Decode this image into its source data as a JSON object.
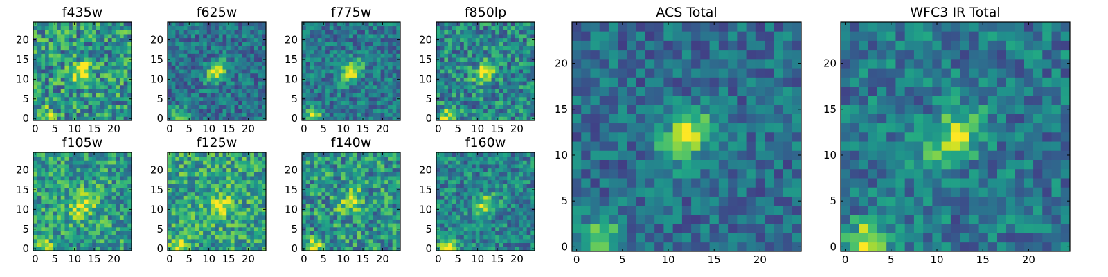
{
  "chart_data": {
    "type": "heatmap",
    "colormap": "viridis",
    "grid_size": 25,
    "panels": [
      {
        "id": "f435w",
        "title": "f435w",
        "xticks": [
          "0",
          "5",
          "10",
          "15",
          "20"
        ],
        "yticks": [
          "0",
          "5",
          "10",
          "15",
          "20"
        ],
        "source": {
          "center": [
            12,
            12
          ],
          "amp": 0.45,
          "sigma": 2.2,
          "noise": 0.3,
          "base": 0.52,
          "corner_amp": 0.4,
          "seed": 11
        }
      },
      {
        "id": "f625w",
        "title": "f625w",
        "xticks": [
          "0",
          "5",
          "10",
          "15",
          "20"
        ],
        "yticks": [
          "0",
          "5",
          "10",
          "15",
          "20"
        ],
        "source": {
          "center": [
            12,
            12
          ],
          "amp": 0.62,
          "sigma": 2.0,
          "noise": 0.2,
          "base": 0.38,
          "corner_amp": 0.45,
          "seed": 23
        }
      },
      {
        "id": "f775w",
        "title": "f775w",
        "xticks": [
          "0",
          "5",
          "10",
          "15",
          "20"
        ],
        "yticks": [
          "0",
          "5",
          "10",
          "15",
          "20"
        ],
        "source": {
          "center": [
            12,
            12
          ],
          "amp": 0.62,
          "sigma": 2.0,
          "noise": 0.2,
          "base": 0.4,
          "corner_amp": 0.45,
          "seed": 37
        }
      },
      {
        "id": "f850lp",
        "title": "f850lp",
        "xticks": [
          "0",
          "5",
          "10",
          "15",
          "20"
        ],
        "yticks": [
          "0",
          "5",
          "10",
          "15",
          "20"
        ],
        "source": {
          "center": [
            12,
            12
          ],
          "amp": 0.52,
          "sigma": 2.1,
          "noise": 0.26,
          "base": 0.46,
          "corner_amp": 0.42,
          "seed": 41
        }
      },
      {
        "id": "f105w",
        "title": "f105w",
        "xticks": [
          "0",
          "5",
          "10",
          "15",
          "20"
        ],
        "yticks": [
          "0",
          "5",
          "10",
          "15",
          "20"
        ],
        "source": {
          "center": [
            12,
            11
          ],
          "amp": 0.4,
          "sigma": 2.6,
          "noise": 0.26,
          "base": 0.55,
          "corner_amp": 0.35,
          "seed": 53
        }
      },
      {
        "id": "f125w",
        "title": "f125w",
        "xticks": [
          "0",
          "5",
          "10",
          "15",
          "20"
        ],
        "yticks": [
          "0",
          "5",
          "10",
          "15",
          "20"
        ],
        "source": {
          "center": [
            13,
            11
          ],
          "amp": 0.32,
          "sigma": 2.6,
          "noise": 0.26,
          "base": 0.58,
          "corner_amp": 0.45,
          "seed": 67
        }
      },
      {
        "id": "f140w",
        "title": "f140w",
        "xticks": [
          "0",
          "5",
          "10",
          "15",
          "20"
        ],
        "yticks": [
          "0",
          "5",
          "10",
          "15",
          "20"
        ],
        "source": {
          "center": [
            12,
            12
          ],
          "amp": 0.4,
          "sigma": 2.2,
          "noise": 0.28,
          "base": 0.52,
          "corner_amp": 0.45,
          "seed": 79
        }
      },
      {
        "id": "f160w",
        "title": "f160w",
        "xticks": [
          "0",
          "5",
          "10",
          "15",
          "20"
        ],
        "yticks": [
          "0",
          "5",
          "10",
          "15",
          "20"
        ],
        "source": {
          "center": [
            12,
            11
          ],
          "amp": 0.5,
          "sigma": 2.0,
          "noise": 0.22,
          "base": 0.45,
          "corner_amp": 0.55,
          "seed": 83
        }
      },
      {
        "id": "acs_total",
        "title": "ACS Total",
        "xticks": [
          "0",
          "5",
          "10",
          "15",
          "20"
        ],
        "yticks": [
          "0",
          "5",
          "10",
          "15",
          "20"
        ],
        "source": {
          "center": [
            12,
            12
          ],
          "amp": 0.62,
          "sigma": 2.0,
          "noise": 0.18,
          "base": 0.36,
          "corner_amp": 0.55,
          "seed": 97
        }
      },
      {
        "id": "wfc3_total",
        "title": "WFC3 IR Total",
        "xticks": [
          "0",
          "5",
          "10",
          "15",
          "20"
        ],
        "yticks": [
          "0",
          "5",
          "10",
          "15",
          "20"
        ],
        "source": {
          "center": [
            12,
            12
          ],
          "amp": 0.52,
          "sigma": 2.2,
          "noise": 0.2,
          "base": 0.4,
          "corner_amp": 0.55,
          "seed": 101
        }
      }
    ]
  }
}
